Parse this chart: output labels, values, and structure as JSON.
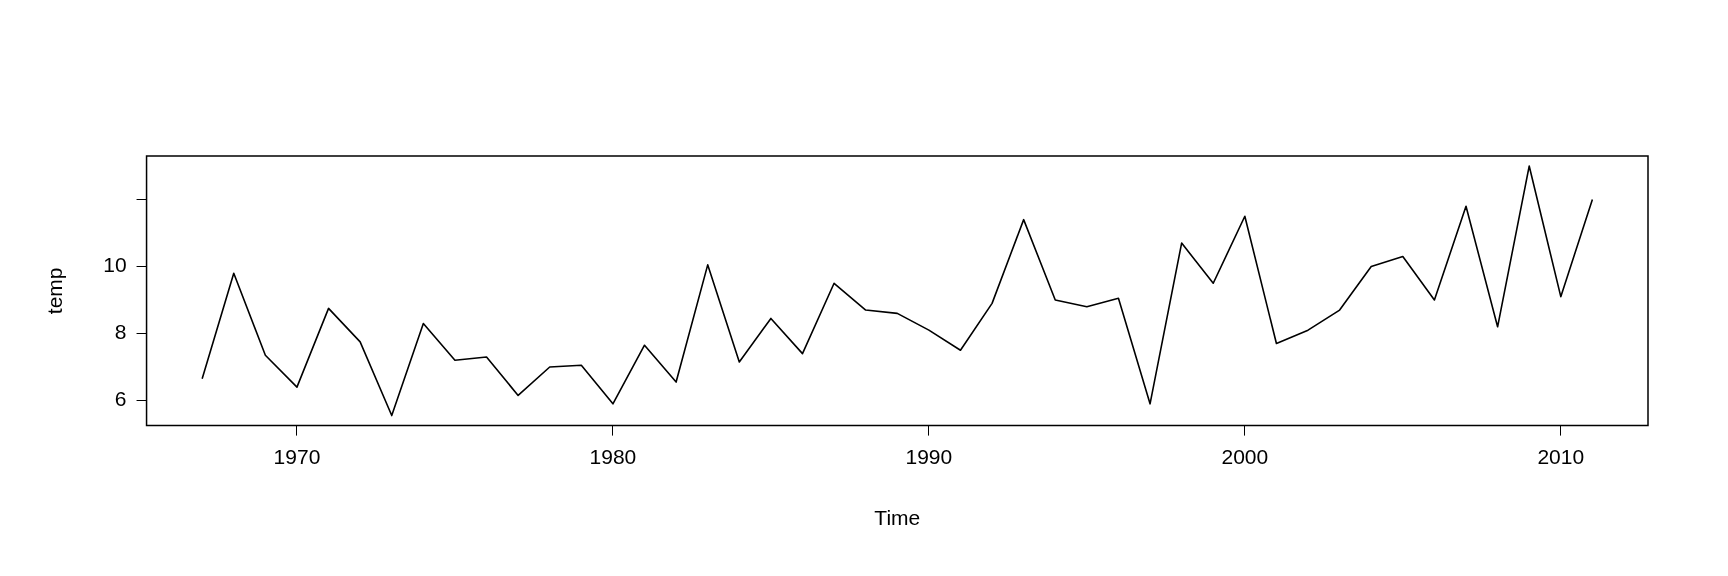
{
  "chart_data": {
    "type": "line",
    "xlabel": "Time",
    "ylabel": "temp",
    "x": [
      1967,
      1968,
      1969,
      1970,
      1971,
      1972,
      1973,
      1974,
      1975,
      1976,
      1977,
      1978,
      1979,
      1980,
      1981,
      1982,
      1983,
      1984,
      1985,
      1986,
      1987,
      1988,
      1989,
      1990,
      1991,
      1992,
      1993,
      1994,
      1995,
      1996,
      1997,
      1998,
      1999,
      2000,
      2001,
      2002,
      2003,
      2004,
      2005,
      2006,
      2007,
      2008,
      2009,
      2010,
      2011
    ],
    "series": [
      {
        "color": "#000000",
        "values": [
          6.65,
          9.8,
          7.35,
          6.4,
          8.75,
          7.75,
          5.55,
          8.3,
          7.2,
          7.3,
          6.15,
          7.0,
          7.05,
          5.9,
          7.65,
          6.55,
          10.05,
          7.15,
          8.45,
          7.4,
          9.5,
          8.7,
          8.6,
          8.1,
          7.5,
          8.9,
          11.4,
          9.0,
          8.8,
          9.05,
          5.9,
          10.7,
          9.5,
          11.5,
          7.7,
          8.1,
          8.7,
          10.0,
          10.3,
          9.0,
          11.8,
          8.2,
          13.0,
          9.1,
          12.0
        ]
      }
    ],
    "xlim": [
      1965.24,
      2012.76
    ],
    "xticks": [
      1970,
      1980,
      1990,
      2000,
      2010
    ],
    "ylim": [
      5.25,
      13.3
    ],
    "yticks": [
      6,
      8,
      10,
      {
        "value": 12,
        "label": null
      }
    ],
    "grid": false,
    "legend": false,
    "marker": "none",
    "line_style": "solid"
  }
}
